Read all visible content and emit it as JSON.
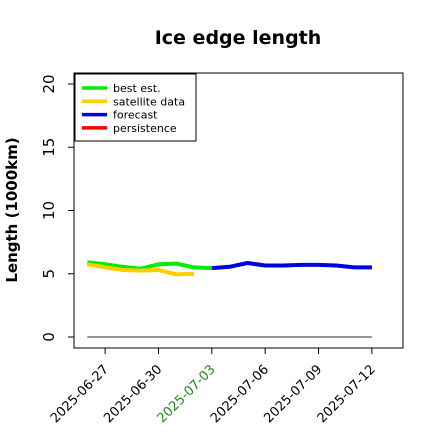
{
  "chart_data": {
    "type": "line",
    "title": "Ice edge length",
    "xlabel": "",
    "ylabel": "Length (1000km)",
    "ylim": [
      0,
      20
    ],
    "yticks": [
      0,
      5,
      10,
      15,
      20
    ],
    "xlim": [
      "2025-06-25T06:00",
      "2025-07-13T18:00"
    ],
    "xticks": [
      "2025-06-27",
      "2025-06-30",
      "2025-07-03",
      "2025-07-06",
      "2025-07-09",
      "2025-07-12"
    ],
    "highlighted_xtick": "2025-07-03",
    "highlight_color": "#228b22",
    "grid": false,
    "legend_position": "top-left",
    "reference_line": {
      "y": 0,
      "from": "2025-06-26",
      "to": "2025-07-12",
      "color": "#777777"
    },
    "series": [
      {
        "name": "best est.",
        "color": "#00ee00",
        "x": [
          "2025-06-26",
          "2025-06-27",
          "2025-06-28",
          "2025-06-29",
          "2025-06-30",
          "2025-07-01",
          "2025-07-02",
          "2025-07-03"
        ],
        "y": [
          5.9,
          5.75,
          5.55,
          5.4,
          5.75,
          5.8,
          5.5,
          5.45
        ]
      },
      {
        "name": "satellite data",
        "color": "#ffcc00",
        "x": [
          "2025-06-26",
          "2025-06-27",
          "2025-06-28",
          "2025-06-29",
          "2025-06-30",
          "2025-07-01",
          "2025-07-02"
        ],
        "y": [
          5.75,
          5.5,
          5.3,
          5.25,
          5.3,
          4.95,
          5.0
        ]
      },
      {
        "name": "forecast",
        "color": "#0000dd",
        "x": [
          "2025-07-03",
          "2025-07-04",
          "2025-07-05",
          "2025-07-06",
          "2025-07-07",
          "2025-07-08",
          "2025-07-09",
          "2025-07-10",
          "2025-07-11",
          "2025-07-12"
        ],
        "y": [
          5.45,
          5.55,
          5.85,
          5.65,
          5.65,
          5.7,
          5.7,
          5.65,
          5.5,
          5.5
        ]
      },
      {
        "name": "persistence",
        "color": "#ff0000",
        "x": [],
        "y": []
      }
    ]
  }
}
